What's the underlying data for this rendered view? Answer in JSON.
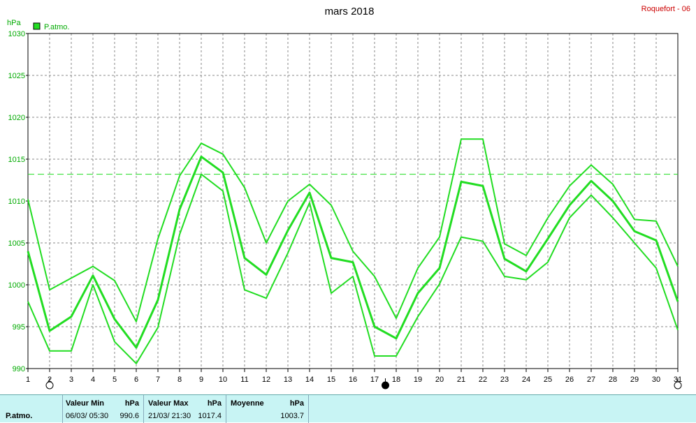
{
  "title": "mars 2018",
  "station": "Roquefort - 06",
  "unit_label": "hPa",
  "legend_label": "P.atmo.",
  "colors": {
    "series": "#22dd22",
    "grid": "#8a8a8a",
    "footer_bg": "#c8f4f4",
    "station": "#cc0000"
  },
  "chart_data": {
    "type": "line",
    "x": [
      1,
      2,
      3,
      4,
      5,
      6,
      7,
      8,
      9,
      10,
      11,
      12,
      13,
      14,
      15,
      16,
      17,
      18,
      19,
      20,
      21,
      22,
      23,
      24,
      25,
      26,
      27,
      28,
      29,
      30,
      31
    ],
    "x_ticks": [
      "1",
      "2",
      "3",
      "4",
      "5",
      "6",
      "7",
      "8",
      "9",
      "10",
      "11",
      "12",
      "13",
      "14",
      "15",
      "16",
      "17",
      "18",
      "19",
      "20",
      "21",
      "22",
      "23",
      "24",
      "25",
      "26",
      "27",
      "28",
      "29",
      "30",
      "31"
    ],
    "ylim": [
      990,
      1030
    ],
    "y_ticks": [
      "990",
      "995",
      "1000",
      "1005",
      "1010",
      "1015",
      "1020",
      "1025",
      "1030"
    ],
    "reference_line": 1013.2,
    "series": [
      {
        "name": "P.atmo.",
        "role": "max",
        "values": [
          1010.2,
          999.4,
          1000.8,
          1002.2,
          1000.5,
          995.6,
          1005.5,
          1013.0,
          1016.9,
          1015.6,
          1011.6,
          1005.0,
          1010.0,
          1012.0,
          1009.5,
          1004.0,
          1001.0,
          996.0,
          1002.0,
          1005.7,
          1017.4,
          1017.4,
          1004.9,
          1003.5,
          1008.0,
          1011.8,
          1014.3,
          1012.0,
          1007.8,
          1007.6,
          1002.2
        ]
      },
      {
        "name": "P.atmo.",
        "role": "mean",
        "values": [
          1004.0,
          994.5,
          996.2,
          1001.1,
          995.9,
          992.5,
          998.2,
          1009.0,
          1015.3,
          1013.4,
          1003.2,
          1001.2,
          1006.5,
          1011.0,
          1003.2,
          1002.7,
          995.0,
          993.6,
          999.0,
          1002.0,
          1012.3,
          1011.8,
          1003.1,
          1001.6,
          1005.5,
          1009.5,
          1012.4,
          1010.0,
          1006.4,
          1005.3,
          998.0
        ]
      },
      {
        "name": "P.atmo.",
        "role": "min",
        "values": [
          998.0,
          992.1,
          992.1,
          1000.0,
          993.2,
          990.6,
          994.9,
          1006.0,
          1013.2,
          1011.2,
          999.4,
          998.4,
          1003.8,
          1009.8,
          999.0,
          1001.0,
          991.5,
          991.5,
          996.2,
          1000.1,
          1005.7,
          1005.2,
          1001.0,
          1000.6,
          1002.7,
          1008.0,
          1010.7,
          1008.0,
          1005.0,
          1002.0,
          994.6
        ]
      }
    ],
    "moon_phases": [
      {
        "day": 2,
        "phase": "full"
      },
      {
        "day": 17.5,
        "phase": "new"
      },
      {
        "day": 31,
        "phase": "full"
      }
    ]
  },
  "footer": {
    "series_label": "P.atmo.",
    "min": {
      "header": "Valeur Min",
      "unit": "hPa",
      "datetime": "06/03/  05:30",
      "value": "990.6"
    },
    "max": {
      "header": "Valeur Max",
      "unit": "hPa",
      "datetime": "21/03/  21:30",
      "value": "1017.4"
    },
    "mean": {
      "header": "Moyenne",
      "unit": "hPa",
      "value": "1003.7"
    }
  }
}
